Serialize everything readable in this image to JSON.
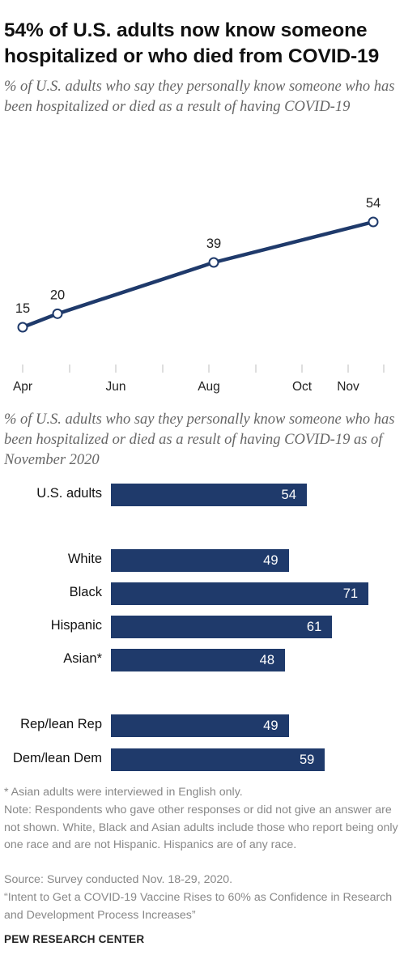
{
  "title": "54% of U.S. adults now know someone hospitalized or who died from COVID-19",
  "subtitle": "% of U.S. adults who say they personally know someone who has been hospitalized or died as a result of having COVID-19",
  "colors": {
    "line": "#1f3a6b",
    "bar": "#1f3a6b",
    "note_text": "#888888"
  },
  "chart_data": [
    {
      "type": "line",
      "x_ticks": [
        "Apr",
        "Jun",
        "Aug",
        "Oct",
        "Nov"
      ],
      "series": [
        {
          "points": [
            {
              "x": "Apr",
              "y": 15
            },
            {
              "x": "Apr-May",
              "y": 20
            },
            {
              "x": "Aug",
              "y": 39
            },
            {
              "x": "Nov",
              "y": 54
            }
          ]
        }
      ],
      "grid": false,
      "legend": "none"
    },
    {
      "type": "bar",
      "orientation": "horizontal",
      "title": "% of U.S. adults who say they personally know someone who has been hospitalized or died as a result of having COVID-19 as of November 2020",
      "categories": [
        "U.S. adults",
        "White",
        "Black",
        "Hispanic",
        "Asian*",
        "Rep/lean Rep",
        "Dem/lean Dem"
      ],
      "values": [
        54,
        49,
        71,
        61,
        48,
        49,
        59
      ]
    }
  ],
  "footnote": "* Asian adults were interviewed in English only.",
  "note": "Note: Respondents who gave other responses or did not give an answer are not shown. White, Black and Asian adults include those who report being only one race and are not Hispanic. Hispanics are of any race.",
  "source": "Source: Survey conducted Nov. 18-29, 2020.",
  "report": "“Intent to Get a COVID-19 Vaccine Rises to 60% as Confidence in Research and Development Process Increases”",
  "brand": "PEW RESEARCH CENTER"
}
